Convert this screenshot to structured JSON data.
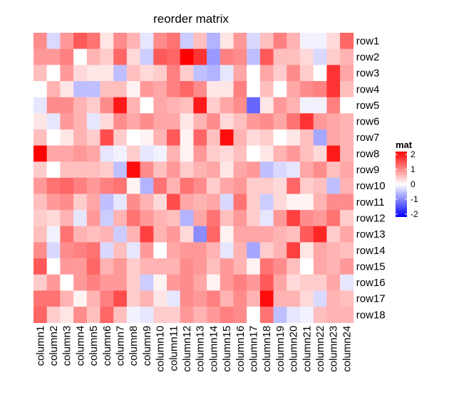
{
  "chart_data": {
    "type": "heatmap",
    "title": "reorder matrix",
    "rows": [
      "row1",
      "row2",
      "row3",
      "row4",
      "row5",
      "row6",
      "row7",
      "row8",
      "row9",
      "row10",
      "row11",
      "row12",
      "row13",
      "row14",
      "row15",
      "row16",
      "row17",
      "row18"
    ],
    "columns": [
      "column1",
      "column2",
      "column3",
      "column4",
      "column5",
      "column6",
      "column7",
      "column8",
      "column9",
      "column10",
      "column11",
      "column12",
      "column13",
      "column14",
      "column15",
      "column16",
      "column17",
      "column18",
      "column19",
      "column20",
      "column21",
      "column22",
      "column23",
      "column24"
    ],
    "values": [
      [
        0.9,
        -0.3,
        0.8,
        1.3,
        1.1,
        0.2,
        0.9,
        0.6,
        -0.2,
        0.9,
        1.1,
        -0.4,
        0.5,
        -0.6,
        0.2,
        0.8,
        -0.3,
        0.5,
        1.0,
        0.6,
        -0.1,
        -0.1,
        0.3,
        1.2
      ],
      [
        0.8,
        0.8,
        1.0,
        0.0,
        0.6,
        0.4,
        1.2,
        0.3,
        -0.4,
        1.3,
        1.2,
        2.1,
        1.6,
        -0.8,
        1.0,
        0.9,
        -0.5,
        1.3,
        0.5,
        0.5,
        0.3,
        -0.3,
        0.4,
        0.6
      ],
      [
        0.5,
        0.0,
        0.8,
        0.3,
        0.2,
        0.2,
        -0.5,
        0.5,
        0.3,
        0.4,
        1.0,
        0.4,
        -0.5,
        -0.6,
        -0.2,
        0.7,
        0.0,
        0.7,
        0.4,
        0.9,
        0.4,
        0.0,
        1.6,
        0.7
      ],
      [
        0.0,
        0.6,
        0.2,
        -0.5,
        -0.5,
        0.5,
        0.5,
        0.1,
        0.8,
        0.7,
        1.0,
        1.2,
        0.9,
        0.2,
        0.2,
        1.0,
        0.0,
        0.5,
        0.0,
        0.7,
        0.9,
        1.0,
        1.6,
        0.5
      ],
      [
        -0.2,
        0.9,
        0.9,
        0.6,
        0.4,
        0.9,
        1.8,
        0.6,
        0.0,
        0.7,
        0.6,
        0.5,
        1.8,
        0.4,
        0.7,
        0.9,
        -1.2,
        0.2,
        0.8,
        0.6,
        -0.1,
        -0.1,
        1.0,
        0.0
      ],
      [
        0.2,
        -0.2,
        0.8,
        0.6,
        -0.2,
        0.3,
        0.9,
        0.7,
        0.9,
        0.7,
        0.7,
        0.2,
        0.6,
        0.9,
        0.3,
        0.5,
        0.8,
        0.9,
        0.7,
        1.1,
        1.6,
        0.8,
        0.7,
        0.6
      ],
      [
        0.5,
        0.0,
        0.2,
        0.6,
        0.4,
        1.4,
        0.4,
        0.0,
        0.1,
        0.6,
        1.3,
        0.1,
        1.2,
        0.5,
        1.9,
        0.6,
        0.3,
        0.4,
        0.0,
        0.2,
        0.5,
        -0.7,
        0.7,
        0.6
      ],
      [
        2.0,
        0.7,
        0.7,
        0.8,
        0.7,
        -0.2,
        -0.1,
        0.4,
        -0.2,
        -0.1,
        0.6,
        0.1,
        0.8,
        0.4,
        0.3,
        0.5,
        0.0,
        0.2,
        0.6,
        0.8,
        0.5,
        0.3,
        1.8,
        0.6
      ],
      [
        0.4,
        0.0,
        0.5,
        0.5,
        0.5,
        0.4,
        -0.5,
        1.9,
        0.9,
        0.5,
        0.8,
        0.4,
        0.6,
        0.7,
        0.2,
        0.7,
        0.8,
        -0.5,
        -0.3,
        -0.2,
        0.7,
        0.9,
        0.5,
        0.7
      ],
      [
        0.8,
        1.1,
        1.2,
        1.0,
        0.8,
        1.0,
        1.1,
        0.1,
        -0.6,
        1.1,
        0.6,
        1.1,
        0.9,
        0.4,
        0.7,
        0.8,
        0.4,
        0.4,
        0.3,
        1.2,
        0.4,
        0.5,
        -0.5,
        0.6
      ],
      [
        0.5,
        0.8,
        0.9,
        0.4,
        0.7,
        -0.5,
        -0.2,
        0.9,
        0.6,
        0.3,
        1.4,
        0.7,
        0.6,
        0.7,
        -0.3,
        1.1,
        0.4,
        -0.4,
        0.3,
        0.1,
        0.1,
        0.6,
        0.9,
        0.9
      ],
      [
        0.4,
        0.3,
        0.6,
        -0.2,
        0.8,
        -0.4,
        0.6,
        1.1,
        0.8,
        0.6,
        0.5,
        -0.6,
        0.7,
        1.1,
        0.5,
        0.8,
        0.4,
        -0.2,
        0.8,
        1.5,
        0.9,
        0.8,
        1.1,
        0.4
      ],
      [
        0.5,
        -0.1,
        1.1,
        0.6,
        0.5,
        0.6,
        -0.4,
        0.6,
        1.5,
        0.6,
        0.8,
        0.3,
        -0.9,
        1.2,
        0.1,
        0.7,
        0.7,
        0.7,
        0.6,
        0.5,
        1.3,
        1.7,
        0.4,
        0.7
      ],
      [
        0.9,
        -0.3,
        0.9,
        1.0,
        1.1,
        -0.3,
        0.5,
        -0.2,
        0.8,
        0.0,
        0.7,
        0.8,
        0.8,
        0.6,
        -0.2,
        0.6,
        -0.7,
        0.4,
        0.6,
        1.5,
        0.2,
        0.7,
        0.6,
        0.5
      ],
      [
        1.3,
        0.0,
        0.8,
        0.8,
        1.2,
        0.6,
        0.8,
        0.4,
        0.6,
        0.6,
        0.6,
        0.9,
        0.8,
        0.5,
        0.8,
        0.6,
        0.1,
        1.1,
        0.9,
        0.5,
        0.0,
        0.7,
        0.6,
        0.8
      ],
      [
        0.4,
        0.8,
        0.0,
        0.8,
        1.0,
        0.8,
        0.8,
        0.4,
        -0.4,
        0.1,
        0.8,
        0.9,
        0.7,
        0.1,
        0.8,
        1.0,
        0.8,
        1.3,
        0.7,
        0.3,
        0.4,
        0.4,
        0.7,
        -0.2
      ],
      [
        1.1,
        1.1,
        0.6,
        0.1,
        0.6,
        1.0,
        1.4,
        0.4,
        0.6,
        0.2,
        -0.2,
        0.9,
        0.8,
        1.0,
        0.6,
        0.9,
        0.6,
        1.9,
        0.6,
        0.6,
        0.3,
        -0.3,
        0.6,
        0.5
      ],
      [
        1.2,
        0.4,
        0.2,
        0.9,
        0.5,
        1.2,
        0.5,
        -0.1,
        -0.2,
        0.4,
        0.4,
        0.8,
        0.6,
        0.8,
        1.0,
        0.9,
        0.0,
        1.1,
        -0.5,
        -0.2,
        -0.1,
        0.5,
        0.6,
        0.6
      ]
    ],
    "legend": {
      "title": "mat",
      "ticks": [
        2,
        1,
        0,
        -1,
        -2
      ],
      "tick_labels": [
        "2",
        "1",
        "0",
        "-1",
        "-2"
      ],
      "colors": {
        "low": "#0000FF",
        "mid": "#FFFFFF",
        "high": "#FF0000"
      },
      "range": [
        -2,
        2
      ]
    }
  }
}
